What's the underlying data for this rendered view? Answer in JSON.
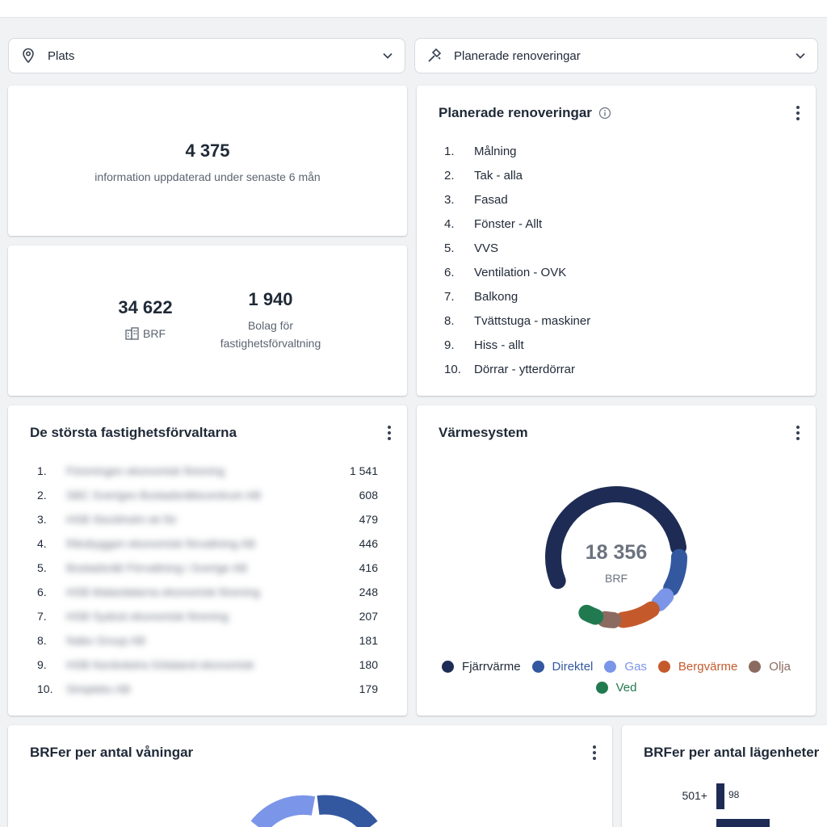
{
  "filters": {
    "location": {
      "label": "Plats",
      "icon": "location-pin-icon"
    },
    "renovations": {
      "label": "Planerade renoveringar",
      "icon": "hammer-icon"
    }
  },
  "updated_card": {
    "value": "4 375",
    "caption": "information uppdaterad under senaste 6 mån"
  },
  "counts_card": {
    "brf_value": "34 622",
    "brf_label": "BRF",
    "companies_value": "1 940",
    "companies_label_1": "Bolag för",
    "companies_label_2": "fastighetsförvaltning"
  },
  "renovations_card": {
    "title": "Planerade renoveringar",
    "items": [
      {
        "n": "1.",
        "label": "Målning"
      },
      {
        "n": "2.",
        "label": "Tak - alla"
      },
      {
        "n": "3.",
        "label": "Fasad"
      },
      {
        "n": "4.",
        "label": "Fönster - Allt"
      },
      {
        "n": "5.",
        "label": "VVS"
      },
      {
        "n": "6.",
        "label": "Ventilation - OVK"
      },
      {
        "n": "7.",
        "label": "Balkong"
      },
      {
        "n": "8.",
        "label": "Tvättstuga - maskiner"
      },
      {
        "n": "9.",
        "label": "Hiss - allt"
      },
      {
        "n": "10.",
        "label": "Dörrar - ytterdörrar"
      }
    ]
  },
  "managers_card": {
    "title": "De största fastighetsförvaltarna",
    "rows": [
      {
        "n": "1.",
        "name": "Föreningen ekonomisk förening",
        "value": "1 541"
      },
      {
        "n": "2.",
        "name": "SBC Sveriges Bostadsrättscentrum AB",
        "value": "608"
      },
      {
        "n": "3.",
        "name": "HSB Stockholm ek för",
        "value": "479"
      },
      {
        "n": "4.",
        "name": "Riksbyggen ekonomisk förvaltning AB",
        "value": "446"
      },
      {
        "n": "5.",
        "name": "Bostadsrätt Förvaltning i Sverige AB",
        "value": "416"
      },
      {
        "n": "6.",
        "name": "HSB Malardalarna ekonomisk förening",
        "value": "248"
      },
      {
        "n": "7.",
        "name": "HSB Sydost ekonomisk förening",
        "value": "207"
      },
      {
        "n": "8.",
        "name": "Nabo Group AB",
        "value": "181"
      },
      {
        "n": "9.",
        "name": "HSB Nordvästra Götaland ekonomisk",
        "value": "180"
      },
      {
        "n": "10.",
        "name": "Simpleko AB",
        "value": "179"
      }
    ]
  },
  "heating_card": {
    "title": "Värmesystem",
    "center_value": "18 356",
    "center_label": "BRF"
  },
  "chart_data": {
    "type": "pie",
    "title": "Värmesystem",
    "donut_center": {
      "value": 18356,
      "label": "BRF"
    },
    "series": [
      {
        "name": "Fjärrvärme",
        "value": 12150,
        "color": "#1e2c55"
      },
      {
        "name": "Direktel",
        "value": 1850,
        "color": "#3358a0"
      },
      {
        "name": "Gas",
        "value": 550,
        "color": "#7b95e8"
      },
      {
        "name": "Bergvärme",
        "value": 1750,
        "color": "#c45a2c"
      },
      {
        "name": "Olja",
        "value": 480,
        "color": "#8b6b60"
      },
      {
        "name": "Ved",
        "value": 550,
        "color": "#217a4f"
      }
    ],
    "legend_position": "bottom"
  },
  "floors_card": {
    "title": "BRFer per antal våningar"
  },
  "apartments_card": {
    "title": "BRFer per antal lägenheter",
    "bars": [
      {
        "label": "501+",
        "value": "98"
      }
    ]
  }
}
